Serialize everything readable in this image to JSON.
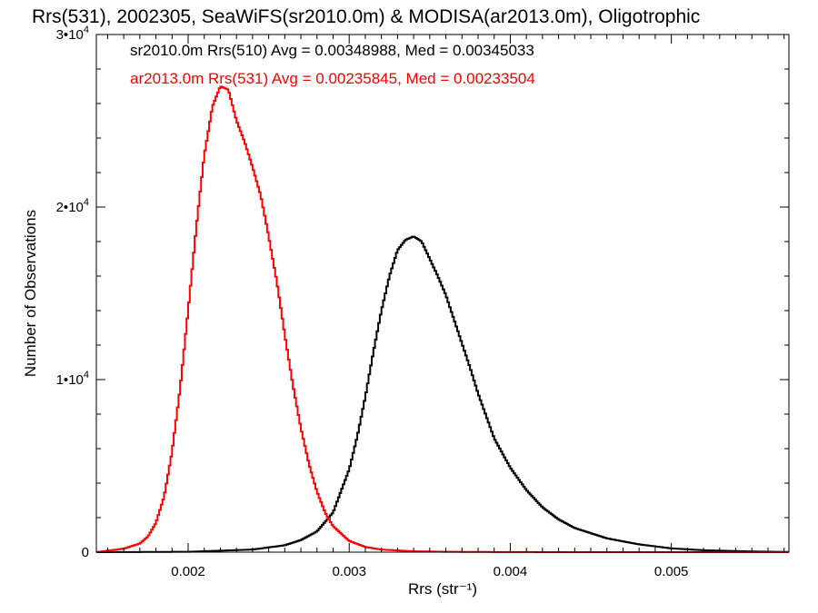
{
  "chart_data": {
    "type": "line",
    "step": true,
    "title": "Rrs(531), 2002305, SeaWiFS(sr2010.0m) & MODISA(ar2013.0m), Oligotrophic",
    "xlabel": "Rrs (str⁻¹)",
    "ylabel": "Number of Observations",
    "xlim": [
      0.00143,
      0.00573
    ],
    "ylim": [
      0,
      30000
    ],
    "x_ticks": [
      {
        "value": 0.002,
        "label": "0.002"
      },
      {
        "value": 0.003,
        "label": "0.003"
      },
      {
        "value": 0.004,
        "label": "0.004"
      },
      {
        "value": 0.005,
        "label": "0.005"
      }
    ],
    "y_ticks": [
      {
        "value": 0,
        "mantissa": "0",
        "exponent": ""
      },
      {
        "value": 10000,
        "mantissa": "1•10",
        "exponent": "4"
      },
      {
        "value": 20000,
        "mantissa": "2•10",
        "exponent": "4"
      },
      {
        "value": 30000,
        "mantissa": "3•10",
        "exponent": "4"
      }
    ],
    "legend": [
      {
        "text": "sr2010.0m Rrs(510) Avg = 0.00348988, Med = 0.00345033",
        "color": "#000000"
      },
      {
        "text": "ar2013.0m Rrs(531) Avg = 0.00235845, Med = 0.00233504",
        "color": "#ff0000"
      }
    ],
    "series": [
      {
        "color": "#000000",
        "x": [
          0.00143,
          0.002,
          0.0024,
          0.0026,
          0.0027,
          0.0028,
          0.0029,
          0.003,
          0.00305,
          0.0031,
          0.00315,
          0.0032,
          0.00325,
          0.0033,
          0.00335,
          0.0034,
          0.00345,
          0.0035,
          0.00355,
          0.0036,
          0.00365,
          0.0037,
          0.00375,
          0.0038,
          0.0039,
          0.004,
          0.0041,
          0.0042,
          0.0043,
          0.0044,
          0.0046,
          0.0048,
          0.005,
          0.0052,
          0.0055,
          0.00573
        ],
        "y": [
          0,
          20,
          150,
          400,
          700,
          1200,
          2300,
          4800,
          6700,
          9000,
          11600,
          14000,
          16000,
          17500,
          18100,
          18300,
          18000,
          17000,
          16000,
          14900,
          13500,
          12100,
          10700,
          9200,
          6600,
          4900,
          3600,
          2600,
          1900,
          1400,
          800,
          450,
          220,
          110,
          40,
          10
        ]
      },
      {
        "color": "#ff0000",
        "x": [
          0.00143,
          0.0016,
          0.0017,
          0.00175,
          0.0018,
          0.00185,
          0.0019,
          0.00195,
          0.002,
          0.00205,
          0.0021,
          0.00215,
          0.0022,
          0.00225,
          0.0023,
          0.00235,
          0.0024,
          0.00245,
          0.0025,
          0.00255,
          0.0026,
          0.00265,
          0.0027,
          0.00275,
          0.0028,
          0.00285,
          0.0029,
          0.003,
          0.0031,
          0.0032,
          0.0034,
          0.0036,
          0.004,
          0.0045,
          0.00573
        ],
        "y": [
          0,
          200,
          500,
          900,
          1700,
          3200,
          5800,
          9500,
          14000,
          18800,
          23000,
          25800,
          27000,
          26800,
          25000,
          23800,
          22300,
          20700,
          18300,
          15700,
          12600,
          9700,
          7200,
          5100,
          3500,
          2300,
          1500,
          650,
          300,
          150,
          50,
          20,
          5,
          0,
          0
        ]
      }
    ]
  }
}
